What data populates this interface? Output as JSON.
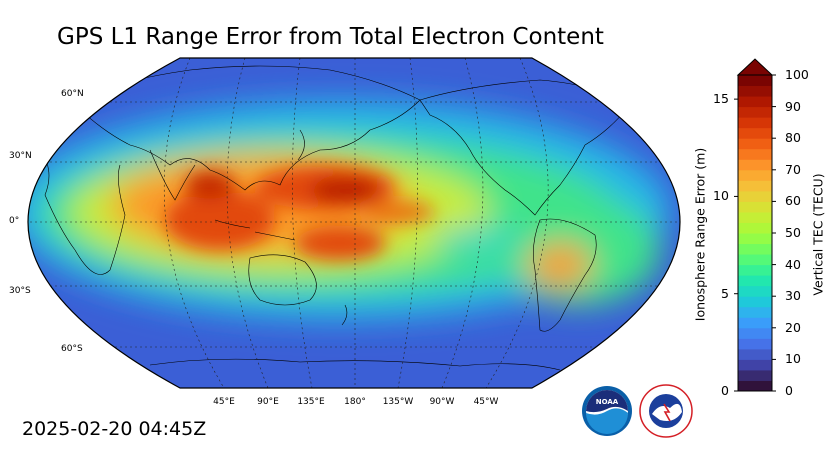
{
  "title": "GPS L1 Range Error from Total Electron Content",
  "timestamp": "2025-02-20 04:45Z",
  "map": {
    "projection": "robinson",
    "central_longitude": "180°",
    "lat_labels": [
      "60°N",
      "30°N",
      "0°",
      "30°S",
      "60°S"
    ],
    "lon_labels": [
      "45°E",
      "90°E",
      "135°E",
      "180°",
      "135°W",
      "90°W",
      "45°W"
    ],
    "grid": true
  },
  "colorbar": {
    "right_label": "Vertical TEC (TECU)",
    "right_ticks": [
      "0",
      "10",
      "20",
      "30",
      "40",
      "50",
      "60",
      "70",
      "80",
      "90",
      "100"
    ],
    "left_label": "Ionosphere Range Error (m)",
    "left_ticks": [
      "0",
      "5",
      "10",
      "15"
    ],
    "extend": "max",
    "colormap": "turbo",
    "colors": [
      "#30123b",
      "#4145ab",
      "#4675ed",
      "#39a2fc",
      "#1bcfd4",
      "#24eca6",
      "#61fc6c",
      "#a4fc3b",
      "#d1e834",
      "#f3c63a",
      "#fe9b2d",
      "#f36315",
      "#d93806",
      "#b11901",
      "#7a0402"
    ]
  },
  "logos": {
    "noaa": "NOAA",
    "nws": "NATIONAL WEATHER SERVICE"
  }
}
